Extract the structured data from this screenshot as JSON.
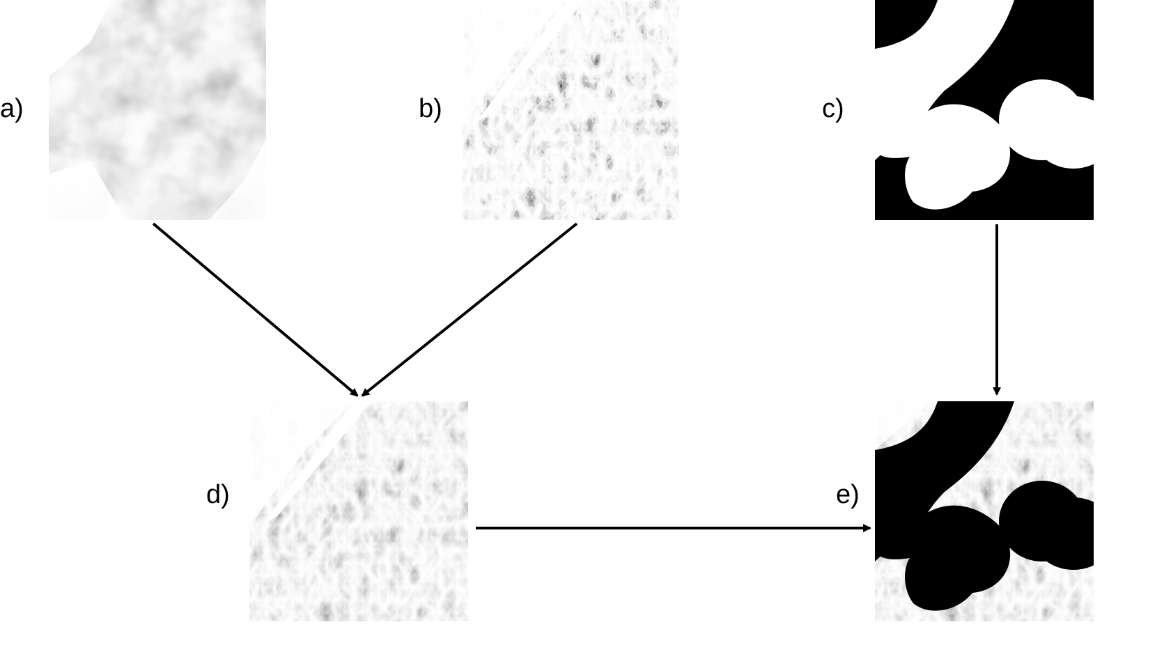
{
  "panels": [
    {
      "id": "a",
      "label": "a)"
    },
    {
      "id": "b",
      "label": "b)"
    },
    {
      "id": "c",
      "label": "c)"
    },
    {
      "id": "d",
      "label": "d)"
    },
    {
      "id": "e",
      "label": "e)"
    }
  ],
  "colors": {
    "background": "#ffffff",
    "arrow": "#000000",
    "mask_black": "#000000",
    "mask_white": "#ffffff"
  }
}
